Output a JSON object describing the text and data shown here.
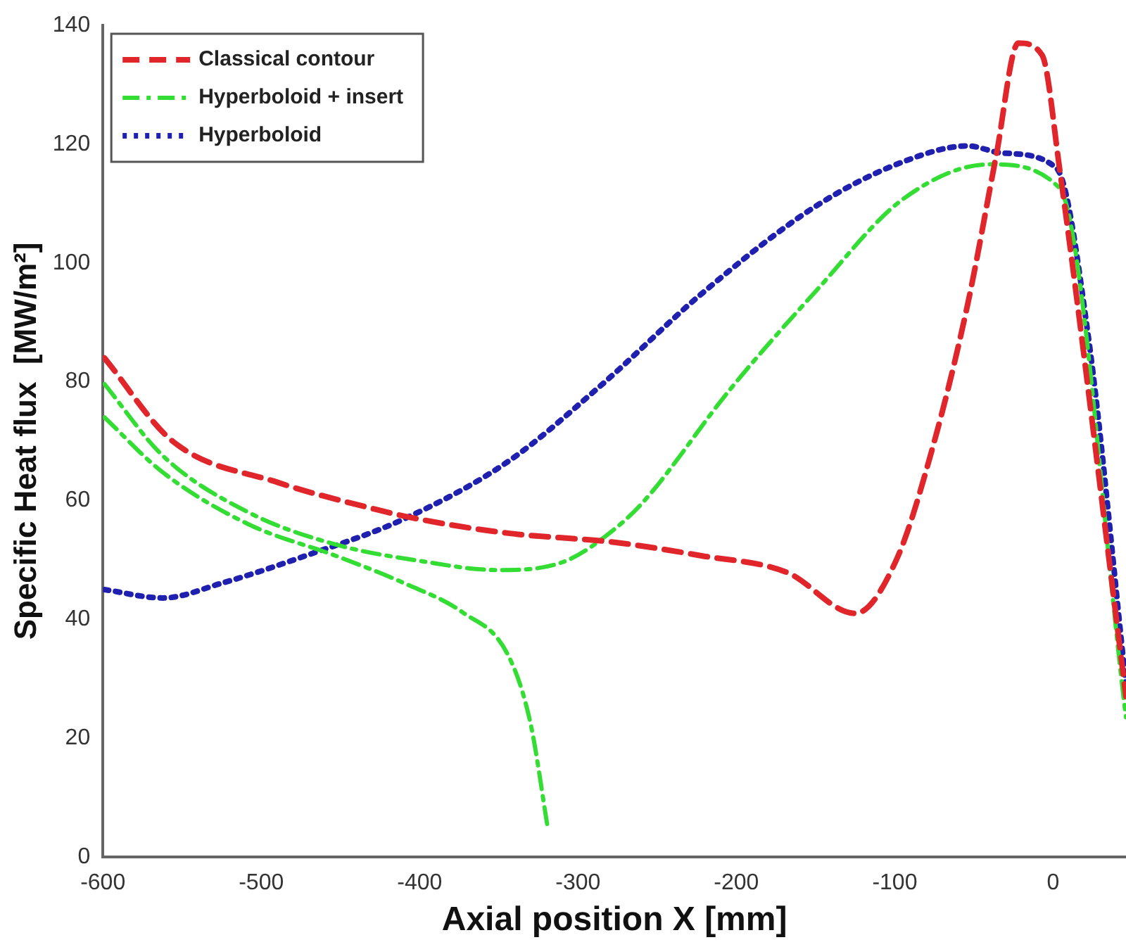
{
  "chart_data": {
    "type": "line",
    "xlabel": "Axial position X [mm]",
    "ylabel": "Specific Heat flux  [MW/m²]",
    "xlim": [
      -600,
      46
    ],
    "xticks": [
      -600,
      -500,
      -400,
      -300,
      -200,
      -100,
      0
    ],
    "ylim": [
      0,
      140
    ],
    "yticks": [
      0,
      20,
      40,
      60,
      80,
      100,
      120,
      140
    ],
    "grid": false,
    "legend": "top left",
    "marker": "none",
    "series": [
      {
        "name": "Classical contour",
        "color": "#e0262a",
        "line_style": "dashed",
        "x": [
          -599,
          -556,
          -489,
          -435,
          -403,
          -344,
          -278,
          -222,
          -168,
          -125,
          -99,
          -76,
          -54,
          -36,
          -22,
          -7,
          4,
          46
        ],
        "values": [
          84,
          70,
          63,
          59,
          57,
          54.5,
          53,
          50.7,
          47.9,
          41,
          50,
          69,
          93,
          118,
          137,
          135,
          116,
          27
        ]
      },
      {
        "name": "Hyperboloid + insert",
        "color": "#33dd33",
        "line_style": "dashdot",
        "x": [
          -599,
          -562,
          -508,
          -453,
          -399,
          -351,
          -308,
          -276,
          -258,
          -204,
          -149,
          -95,
          -40,
          4,
          46
        ],
        "values": [
          79.6,
          67.5,
          58,
          52.6,
          49.8,
          48.3,
          49.8,
          55.4,
          60,
          78.7,
          95.5,
          110.7,
          116.6,
          112.6,
          23.5
        ]
      },
      {
        "color": "#33dd33",
        "line_style": "dashdot",
        "x": [
          -599,
          -562,
          -508,
          -453,
          -409,
          -373,
          -344,
          -330,
          -319
        ],
        "values": [
          74,
          64.7,
          56,
          50.7,
          46,
          41.2,
          33.9,
          22.5,
          4.7
        ]
      },
      {
        "name": "Hyperboloid",
        "color": "#2020b0",
        "line_style": "dotted",
        "x": [
          -599,
          -562,
          -526,
          -472,
          -409,
          -344,
          -285,
          -222,
          -149,
          -95,
          -54,
          -32,
          2,
          22,
          46
        ],
        "values": [
          45,
          43.6,
          46,
          50.7,
          57,
          66.6,
          79.5,
          94.8,
          109.7,
          117,
          119.7,
          118.5,
          116,
          88,
          29
        ]
      }
    ]
  }
}
